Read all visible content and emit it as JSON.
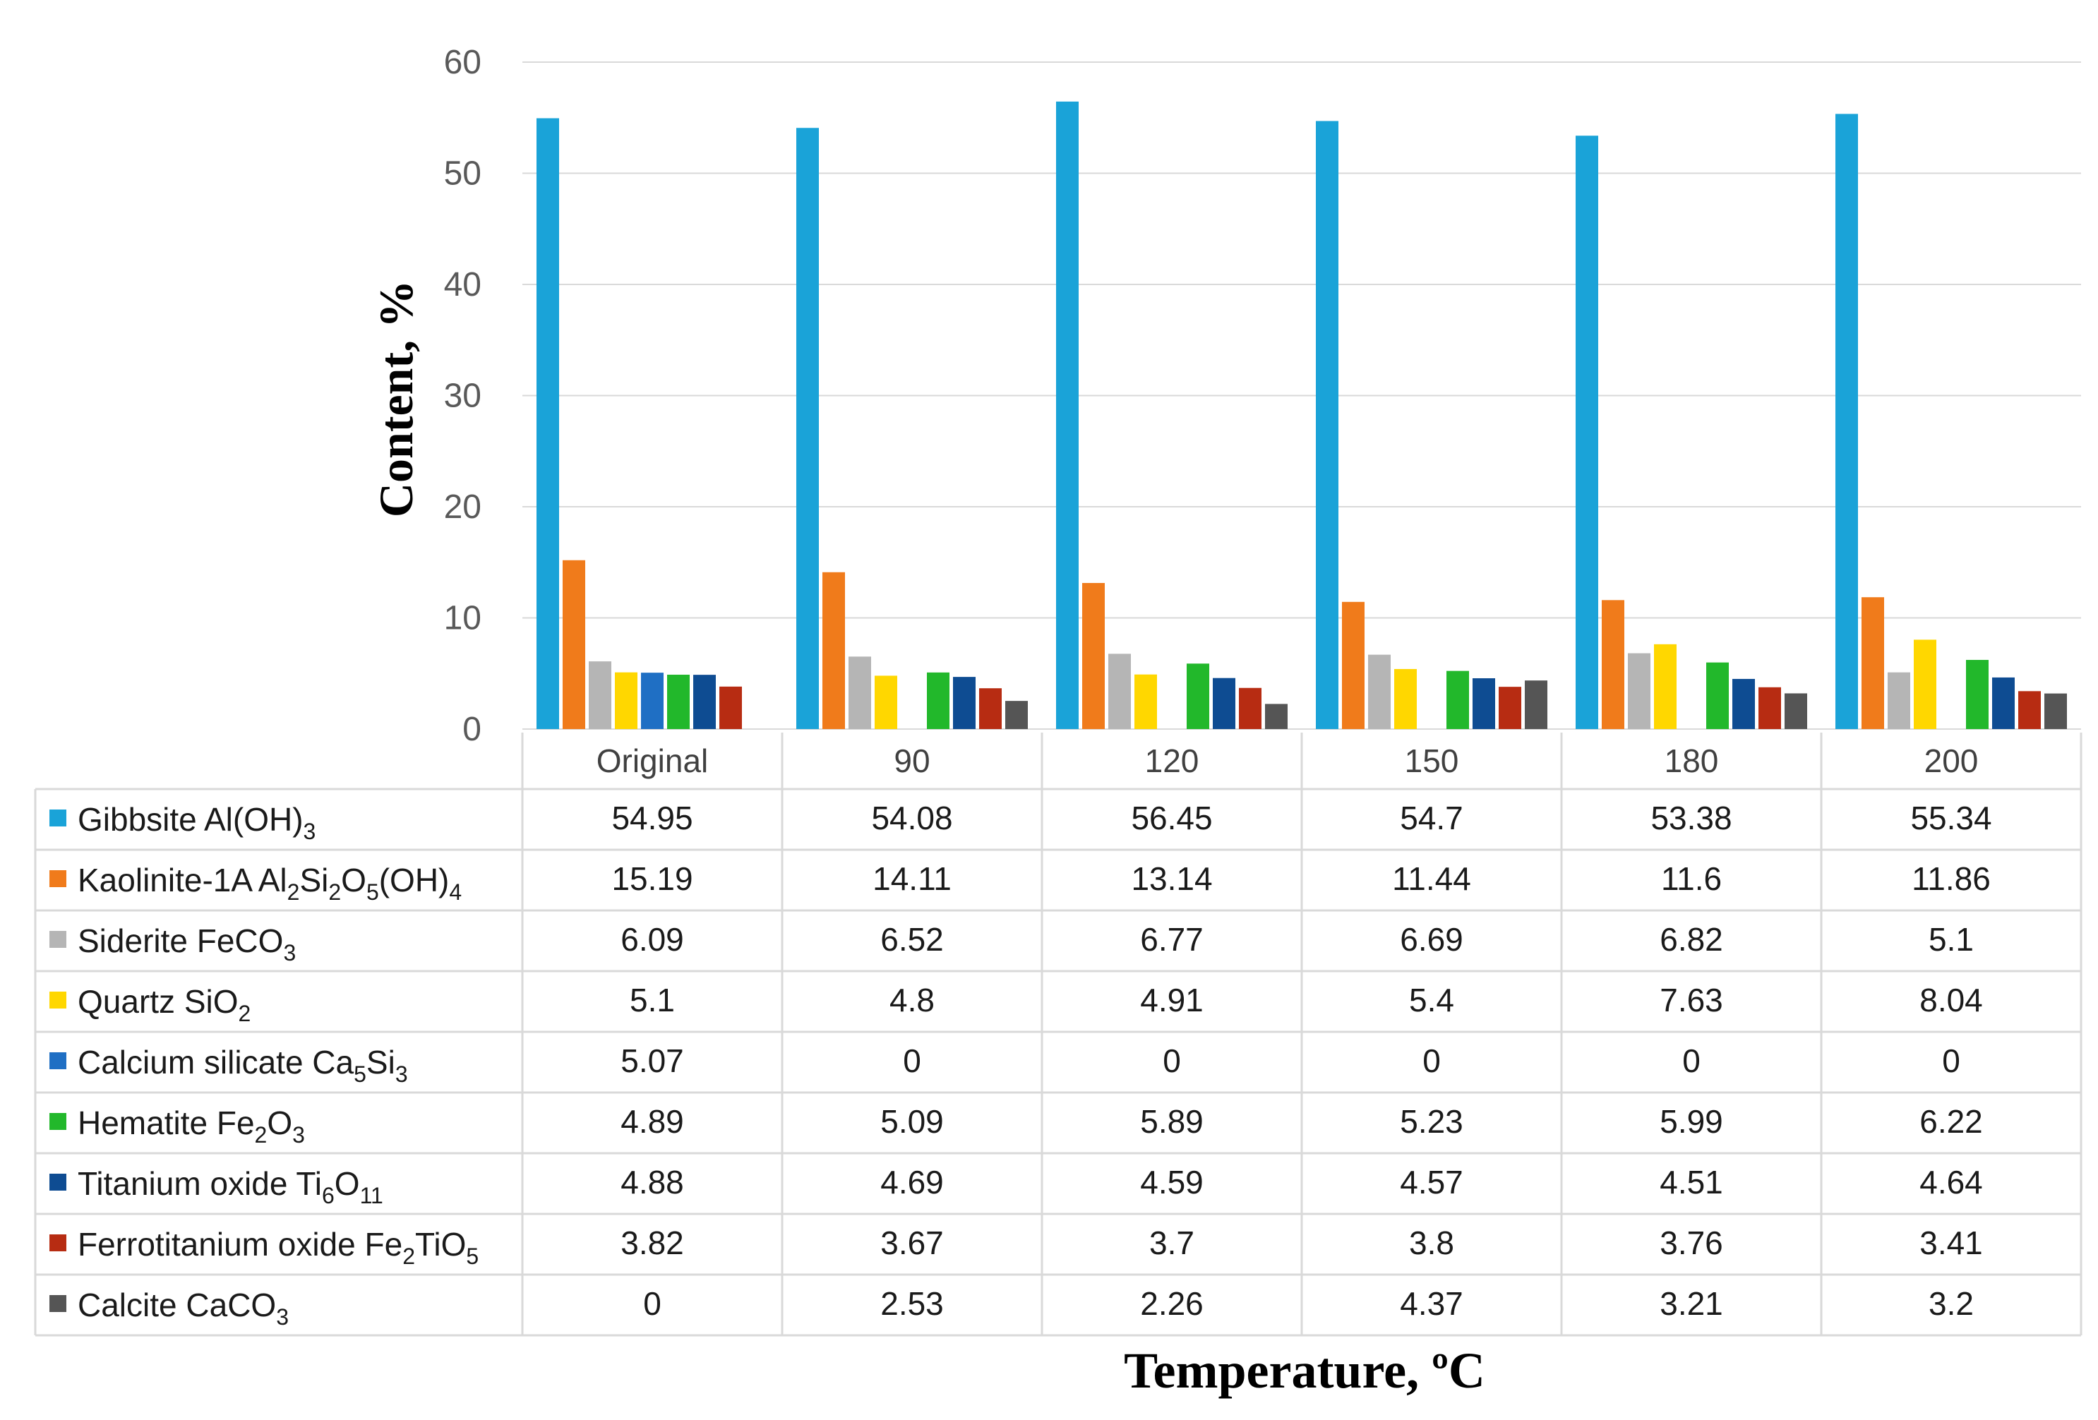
{
  "chart_data": {
    "type": "bar",
    "title": "",
    "ylabel": "Content, %",
    "xlabel": "Temperature, ºC",
    "ylim": [
      0,
      60
    ],
    "yticks": [
      "0",
      "10",
      "20",
      "30",
      "40",
      "50",
      "60"
    ],
    "grid": true,
    "legend": "data-table",
    "categories": [
      "Original",
      "90",
      "120",
      "150",
      "180",
      "200"
    ],
    "series": [
      {
        "name": "Gibbsite Al(OH)",
        "sub": "3",
        "color": "#1AA3D8",
        "values": [
          54.95,
          54.08,
          56.45,
          54.7,
          53.38,
          55.34
        ],
        "labels": [
          "54.95",
          "54.08",
          "56.45",
          "54.7",
          "53.38",
          "55.34"
        ]
      },
      {
        "name": "Kaolinite-1A Al2Si2O5(OH)4",
        "color": "#F07B1B",
        "parts": [
          [
            "Kaolinite-1A Al",
            ""
          ],
          [
            "2",
            "sub"
          ],
          [
            "Si",
            ""
          ],
          [
            "2",
            "sub"
          ],
          [
            "O",
            ""
          ],
          [
            "5",
            "sub"
          ],
          [
            "(OH)",
            ""
          ],
          [
            "4",
            "sub"
          ]
        ],
        "values": [
          15.19,
          14.11,
          13.14,
          11.44,
          11.6,
          11.86
        ],
        "labels": [
          "15.19",
          "14.11",
          "13.14",
          "11.44",
          "11.6",
          "11.86"
        ]
      },
      {
        "name": "Siderite FeCO3",
        "color": "#B5B5B5",
        "parts": [
          [
            "Siderite FeCO",
            ""
          ],
          [
            "3",
            "sub"
          ]
        ],
        "values": [
          6.09,
          6.52,
          6.77,
          6.69,
          6.82,
          5.1
        ],
        "labels": [
          "6.09",
          "6.52",
          "6.77",
          "6.69",
          "6.82",
          "5.1"
        ]
      },
      {
        "name": "Quartz SiO2",
        "color": "#FFD700",
        "parts": [
          [
            "Quartz SiO",
            ""
          ],
          [
            "2",
            "sub"
          ]
        ],
        "values": [
          5.1,
          4.8,
          4.91,
          5.4,
          7.63,
          8.04
        ],
        "labels": [
          "5.1",
          "4.8",
          "4.91",
          "5.4",
          "7.63",
          "8.04"
        ]
      },
      {
        "name": "Calcium silicate Ca5Si3",
        "color": "#1F6FC4",
        "parts": [
          [
            "Calcium silicate Ca",
            ""
          ],
          [
            "5",
            "sub"
          ],
          [
            "Si",
            ""
          ],
          [
            "3",
            "sub"
          ]
        ],
        "values": [
          5.07,
          0,
          0,
          0,
          0,
          0
        ],
        "labels": [
          "5.07",
          "0",
          "0",
          "0",
          "0",
          "0"
        ]
      },
      {
        "name": "Hematite Fe2O3",
        "color": "#22B82B",
        "parts": [
          [
            "Hematite Fe",
            ""
          ],
          [
            "2",
            "sub"
          ],
          [
            "O",
            ""
          ],
          [
            "3",
            "sub"
          ]
        ],
        "values": [
          4.89,
          5.09,
          5.89,
          5.23,
          5.99,
          6.22
        ],
        "labels": [
          "4.89",
          "5.09",
          "5.89",
          "5.23",
          "5.99",
          "6.22"
        ]
      },
      {
        "name": "Titanium oxide Ti6O11",
        "color": "#0E4C92",
        "parts": [
          [
            "Titanium oxide Ti",
            ""
          ],
          [
            "6",
            "sub"
          ],
          [
            "O",
            ""
          ],
          [
            "11",
            "sub"
          ]
        ],
        "values": [
          4.88,
          4.69,
          4.59,
          4.57,
          4.51,
          4.64
        ],
        "labels": [
          "4.88",
          "4.69",
          "4.59",
          "4.57",
          "4.51",
          "4.64"
        ]
      },
      {
        "name": "Ferrotitanium oxide Fe2TiO5",
        "color": "#B72C12",
        "parts": [
          [
            "Ferrotitanium oxide Fe",
            ""
          ],
          [
            "2",
            "sub"
          ],
          [
            "TiO",
            ""
          ],
          [
            "5",
            "sub"
          ]
        ],
        "values": [
          3.82,
          3.67,
          3.7,
          3.8,
          3.76,
          3.41
        ],
        "labels": [
          "3.82",
          "3.67",
          "3.7",
          "3.8",
          "3.76",
          "3.41"
        ]
      },
      {
        "name": "Calcite CaCO3",
        "color": "#555555",
        "parts": [
          [
            "Calcite CaCO",
            ""
          ],
          [
            "3",
            "sub"
          ]
        ],
        "values": [
          0,
          2.53,
          2.26,
          4.37,
          3.21,
          3.2
        ],
        "labels": [
          "0",
          "2.53",
          "2.26",
          "4.37",
          "3.21",
          "3.2"
        ]
      }
    ]
  }
}
